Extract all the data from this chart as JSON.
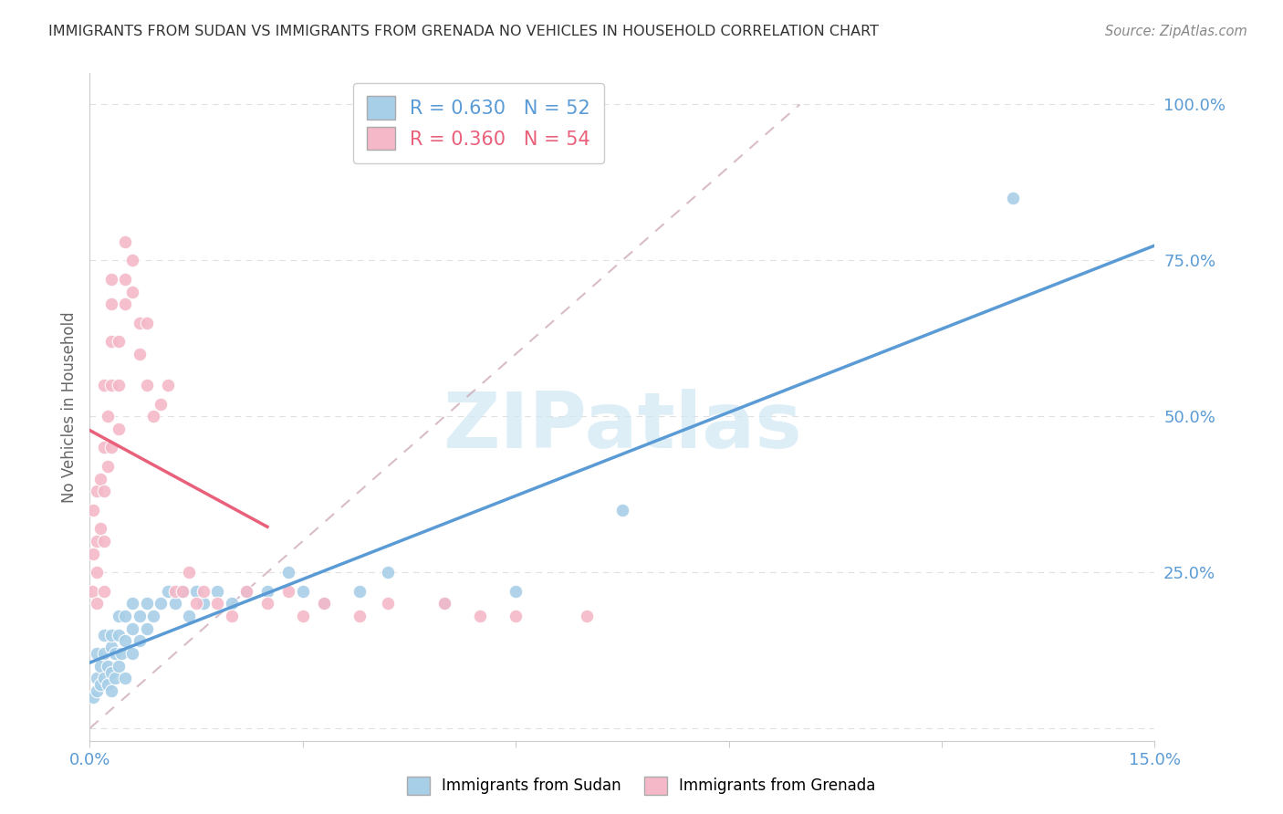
{
  "title": "IMMIGRANTS FROM SUDAN VS IMMIGRANTS FROM GRENADA NO VEHICLES IN HOUSEHOLD CORRELATION CHART",
  "source": "Source: ZipAtlas.com",
  "ylabel": "No Vehicles in Household",
  "yticks": [
    0.0,
    0.25,
    0.5,
    0.75,
    1.0
  ],
  "ytick_labels": [
    "",
    "25.0%",
    "50.0%",
    "75.0%",
    "100.0%"
  ],
  "xlim": [
    0.0,
    0.15
  ],
  "ylim": [
    -0.02,
    1.05
  ],
  "sudan_color": "#a8cfe8",
  "grenada_color": "#f4b8c8",
  "sudan_line_color": "#5b9bd5",
  "grenada_line_color": "#e8607a",
  "sudan_R": 0.63,
  "sudan_N": 52,
  "grenada_R": 0.36,
  "grenada_N": 54,
  "axis_label_color": "#5b9bd5",
  "watermark": "ZIPatlas",
  "watermark_color": "#d0e8f5",
  "background": "#ffffff",
  "grid_color": "#e0e0e0",
  "sudan_x": [
    0.0005,
    0.001,
    0.001,
    0.001,
    0.0015,
    0.0015,
    0.002,
    0.002,
    0.002,
    0.0025,
    0.0025,
    0.003,
    0.003,
    0.003,
    0.003,
    0.0035,
    0.0035,
    0.004,
    0.004,
    0.004,
    0.0045,
    0.005,
    0.005,
    0.005,
    0.006,
    0.006,
    0.006,
    0.007,
    0.007,
    0.008,
    0.008,
    0.009,
    0.01,
    0.011,
    0.012,
    0.013,
    0.014,
    0.015,
    0.016,
    0.018,
    0.02,
    0.022,
    0.025,
    0.028,
    0.03,
    0.033,
    0.038,
    0.042,
    0.05,
    0.06,
    0.075,
    0.13
  ],
  "sudan_y": [
    0.05,
    0.08,
    0.12,
    0.06,
    0.1,
    0.07,
    0.15,
    0.08,
    0.12,
    0.1,
    0.07,
    0.13,
    0.09,
    0.15,
    0.06,
    0.12,
    0.08,
    0.15,
    0.1,
    0.18,
    0.12,
    0.14,
    0.08,
    0.18,
    0.16,
    0.12,
    0.2,
    0.18,
    0.14,
    0.2,
    0.16,
    0.18,
    0.2,
    0.22,
    0.2,
    0.22,
    0.18,
    0.22,
    0.2,
    0.22,
    0.2,
    0.22,
    0.22,
    0.25,
    0.22,
    0.2,
    0.22,
    0.25,
    0.2,
    0.22,
    0.35,
    0.85
  ],
  "grenada_x": [
    0.0003,
    0.0005,
    0.0005,
    0.001,
    0.001,
    0.001,
    0.001,
    0.0015,
    0.0015,
    0.002,
    0.002,
    0.002,
    0.002,
    0.002,
    0.0025,
    0.0025,
    0.003,
    0.003,
    0.003,
    0.003,
    0.003,
    0.004,
    0.004,
    0.004,
    0.005,
    0.005,
    0.005,
    0.006,
    0.006,
    0.007,
    0.007,
    0.008,
    0.008,
    0.009,
    0.01,
    0.011,
    0.012,
    0.013,
    0.014,
    0.015,
    0.016,
    0.018,
    0.02,
    0.022,
    0.025,
    0.028,
    0.03,
    0.033,
    0.038,
    0.042,
    0.05,
    0.055,
    0.06,
    0.07
  ],
  "grenada_y": [
    0.22,
    0.28,
    0.35,
    0.2,
    0.25,
    0.3,
    0.38,
    0.32,
    0.4,
    0.22,
    0.3,
    0.38,
    0.45,
    0.55,
    0.42,
    0.5,
    0.45,
    0.55,
    0.62,
    0.68,
    0.72,
    0.62,
    0.55,
    0.48,
    0.68,
    0.72,
    0.78,
    0.7,
    0.75,
    0.6,
    0.65,
    0.55,
    0.65,
    0.5,
    0.52,
    0.55,
    0.22,
    0.22,
    0.25,
    0.2,
    0.22,
    0.2,
    0.18,
    0.22,
    0.2,
    0.22,
    0.18,
    0.2,
    0.18,
    0.2,
    0.2,
    0.18,
    0.18,
    0.18
  ]
}
